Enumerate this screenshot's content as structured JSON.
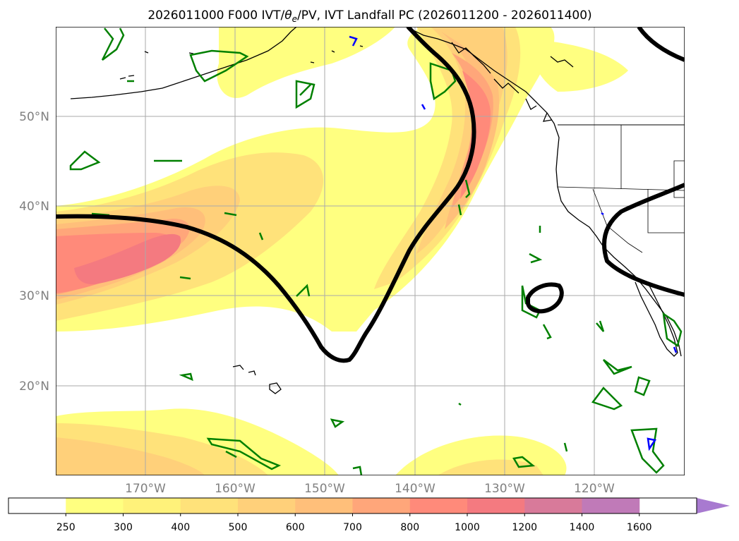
{
  "title": {
    "prefix": "2026011000 F000 IVT/",
    "theta": "θ",
    "theta_sub": "e",
    "suffix": "/PV, IVT Landfall PC (2026011200 - 2026011400)"
  },
  "map": {
    "lon_labels": [
      "170°W",
      "160°W",
      "150°W",
      "140°W",
      "130°W",
      "120°W"
    ],
    "lat_labels": [
      "50°N",
      "40°N",
      "30°N",
      "20°N"
    ],
    "lon_ticks": [
      -170,
      -160,
      -150,
      -140,
      -130,
      -120
    ],
    "lat_ticks": [
      50,
      40,
      30,
      20
    ],
    "extent": {
      "lon_min": -180,
      "lon_max": -110,
      "lat_min": 10,
      "lat_max": 60
    },
    "colors": {
      "pv_contour": "#008000",
      "neg_contour": "#0000ff",
      "landfall": "#000000",
      "coast": "#000000"
    }
  },
  "colorbar": {
    "levels": [
      "250",
      "300",
      "400",
      "500",
      "600",
      "700",
      "800",
      "1000",
      "1200",
      "1400",
      "1600"
    ],
    "colors": [
      "#ffffff",
      "#ffff80",
      "#fff27a",
      "#ffe27a",
      "#ffd07a",
      "#ffbf7a",
      "#ffa67a",
      "#ff8a7a",
      "#f47a80",
      "#d87a9a",
      "#c07ab8",
      "#a87ad0"
    ],
    "extend": "max"
  }
}
